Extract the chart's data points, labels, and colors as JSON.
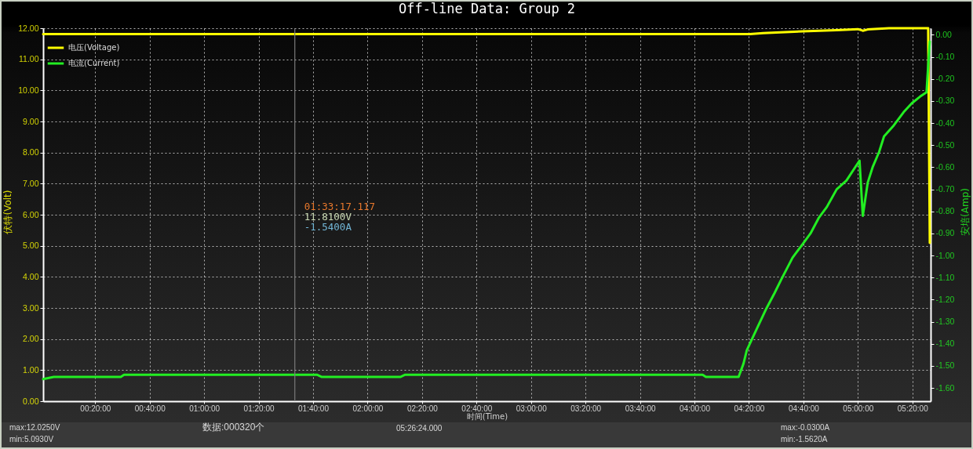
{
  "chart_data": {
    "type": "line",
    "title": "Off-line Data: Group 2",
    "xlabel": "时间(Time)",
    "ylabel": "伏特(Volt)",
    "y2label": "安培(Amp)",
    "series": [
      {
        "name": "电压(Voltage)",
        "color": "#ffff00",
        "x": [
          0.015,
          4.34,
          4.42,
          4.5,
          4.66,
          4.87,
          5,
          5.03,
          5.06,
          5.19,
          5.3,
          5.43,
          5.44
        ],
        "values": [
          11.81,
          11.81,
          11.84,
          11.86,
          11.9,
          11.94,
          11.97,
          11.92,
          11.96,
          12,
          12,
          12,
          5.09
        ]
      },
      {
        "name": "电流(Current)",
        "color": "#22ee22",
        "axis": "y2",
        "x": [
          0.015,
          0.08,
          0.49,
          0.51,
          1.69,
          1.72,
          2.2,
          2.23,
          4.05,
          4.07,
          4.27,
          4.3,
          4.32,
          4.37,
          4.44,
          4.49,
          4.53,
          4.6,
          4.66,
          4.71,
          4.76,
          4.81,
          4.87,
          4.93,
          5.01,
          5.03,
          5.06,
          5.09,
          5.13,
          5.16,
          5.22,
          5.28,
          5.33,
          5.38,
          5.42,
          5.43,
          5.44
        ],
        "values": [
          -1.56,
          -1.55,
          -1.55,
          -1.54,
          -1.54,
          -1.55,
          -1.55,
          -1.54,
          -1.54,
          -1.55,
          -1.55,
          -1.49,
          -1.43,
          -1.35,
          -1.24,
          -1.17,
          -1.11,
          -1.01,
          -0.95,
          -0.9,
          -0.83,
          -0.78,
          -0.7,
          -0.66,
          -0.57,
          -0.82,
          -0.67,
          -0.6,
          -0.53,
          -0.46,
          -0.41,
          -0.35,
          -0.31,
          -0.28,
          -0.26,
          -0.14,
          -0.03
        ]
      }
    ],
    "xlim": [
      0.015,
      5.445
    ],
    "xticks": [
      {
        "value": 0.3333,
        "label": "00:20:00"
      },
      {
        "value": 0.6667,
        "label": "00:40:00"
      },
      {
        "value": 1,
        "label": "01:00:00"
      },
      {
        "value": 1.3333,
        "label": "01:20:00"
      },
      {
        "value": 1.6667,
        "label": "01:40:00"
      },
      {
        "value": 2,
        "label": "02:00:00"
      },
      {
        "value": 2.3333,
        "label": "02:20:00"
      },
      {
        "value": 2.6667,
        "label": "02:40:00"
      },
      {
        "value": 3,
        "label": "03:00:00"
      },
      {
        "value": 3.3333,
        "label": "03:20:00"
      },
      {
        "value": 3.6667,
        "label": "03:40:00"
      },
      {
        "value": 4,
        "label": "04:00:00"
      },
      {
        "value": 4.3333,
        "label": "04:20:00"
      },
      {
        "value": 4.6667,
        "label": "04:40:00"
      },
      {
        "value": 5,
        "label": "05:00:00"
      },
      {
        "value": 5.3333,
        "label": "05:20:00"
      }
    ],
    "ylim": [
      0,
      12
    ],
    "yticks": [
      {
        "value": 0,
        "label": "0.00"
      },
      {
        "value": 1,
        "label": "1.00"
      },
      {
        "value": 2,
        "label": "2.00"
      },
      {
        "value": 3,
        "label": "3.00"
      },
      {
        "value": 4,
        "label": "4.00"
      },
      {
        "value": 5,
        "label": "5.00"
      },
      {
        "value": 6,
        "label": "6.00"
      },
      {
        "value": 7,
        "label": "7.00"
      },
      {
        "value": 8,
        "label": "8.00"
      },
      {
        "value": 9,
        "label": "9.00"
      },
      {
        "value": 10,
        "label": "10.00"
      },
      {
        "value": 11,
        "label": "11.00"
      },
      {
        "value": 12,
        "label": "12.00"
      }
    ],
    "y2lim": [
      -1.66,
      0.03
    ],
    "y2ticks": [
      {
        "value": 0,
        "label": "0.00"
      },
      {
        "value": -0.1,
        "label": "-0.10"
      },
      {
        "value": -0.2,
        "label": "-0.20"
      },
      {
        "value": -0.3,
        "label": "-0.30"
      },
      {
        "value": -0.4,
        "label": "-0.40"
      },
      {
        "value": -0.5,
        "label": "-0.50"
      },
      {
        "value": -0.6,
        "label": "-0.60"
      },
      {
        "value": -0.7,
        "label": "-0.70"
      },
      {
        "value": -0.8,
        "label": "-0.80"
      },
      {
        "value": -0.9,
        "label": "-0.90"
      },
      {
        "value": -1,
        "label": "-1.00"
      },
      {
        "value": -1.1,
        "label": "-1.10"
      },
      {
        "value": -1.2,
        "label": "-1.20"
      },
      {
        "value": -1.3,
        "label": "-1.30"
      },
      {
        "value": -1.4,
        "label": "-1.40"
      },
      {
        "value": -1.5,
        "label": "-1.50"
      },
      {
        "value": -1.6,
        "label": "-1.60"
      }
    ],
    "grid": true,
    "legend": "top left",
    "ref_lines": [
      {
        "axis": "x",
        "value": 1.5548,
        "color": "#7a7a7a"
      }
    ],
    "annotations": [
      "01:33:17.117",
      "11.8100V",
      "-1.5400A",
      "max:12.0250V",
      "min:5.0930V",
      "数据:000320个",
      "05:26:24.000",
      "max:-0.0300A",
      "min:-1.5620A"
    ]
  }
}
